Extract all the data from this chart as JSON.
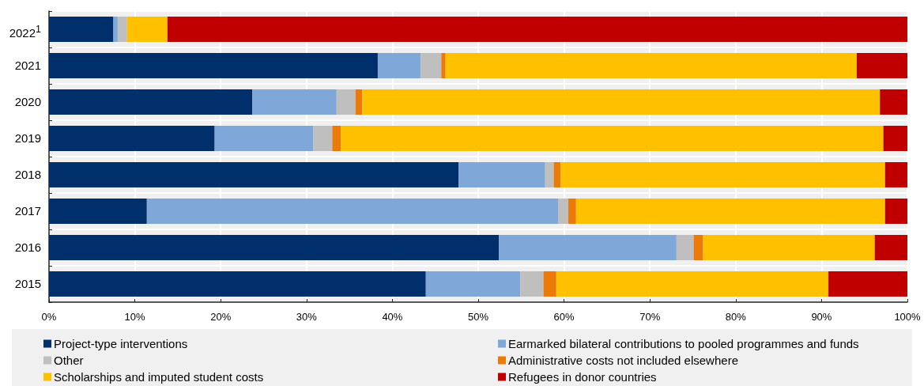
{
  "chart_data": {
    "type": "bar",
    "orientation": "horizontal",
    "stacked": true,
    "categories": [
      "2022$^{1}$",
      "2021",
      "2020",
      "2019",
      "2018",
      "2017",
      "2016",
      "2015"
    ],
    "series": [
      {
        "name": "Project-type interventions",
        "color": "#002f6c",
        "values": [
          7.5,
          38.3,
          23.7,
          19.3,
          47.7,
          11.4,
          52.4,
          43.9
        ]
      },
      {
        "name": "Earmarked bilateral contributions to pooled programmes and funds",
        "color": "#7fa8d9",
        "values": [
          0.5,
          5.0,
          9.8,
          11.5,
          10.1,
          47.9,
          20.7,
          11.0
        ]
      },
      {
        "name": "Other",
        "color": "#bfbfbf",
        "values": [
          1.1,
          2.4,
          2.2,
          2.2,
          1.0,
          1.2,
          2.0,
          2.7
        ]
      },
      {
        "name": "Administrative costs not included elsewhere",
        "color": "#ec7a08",
        "values": [
          0,
          0.5,
          0.8,
          1.0,
          0.8,
          0.9,
          1.1,
          1.5
        ]
      },
      {
        "name": "Scholarships and imputed student costs",
        "color": "#ffc000",
        "values": [
          4.7,
          47.9,
          60.3,
          63.2,
          37.8,
          36.0,
          20.0,
          31.7
        ]
      },
      {
        "name": "Refugees in donor countries",
        "color": "#c00000",
        "values": [
          86.2,
          5.9,
          3.2,
          2.8,
          2.6,
          2.6,
          3.8,
          9.2
        ]
      }
    ],
    "xlim": [
      0,
      100
    ],
    "xticks": [
      {
        "value": 0,
        "label": "0%"
      },
      {
        "value": 10,
        "label": "10%"
      },
      {
        "value": 20,
        "label": "20%"
      },
      {
        "value": 30,
        "label": "30%"
      },
      {
        "value": 40,
        "label": "40%"
      },
      {
        "value": 50,
        "label": "50%"
      },
      {
        "value": 60,
        "label": "60%"
      },
      {
        "value": 70,
        "label": "70%"
      },
      {
        "value": 80,
        "label": "80%"
      },
      {
        "value": 90,
        "label": "90%"
      },
      {
        "value": 100,
        "label": "100%"
      }
    ],
    "grid": true,
    "legend": "bottom"
  }
}
